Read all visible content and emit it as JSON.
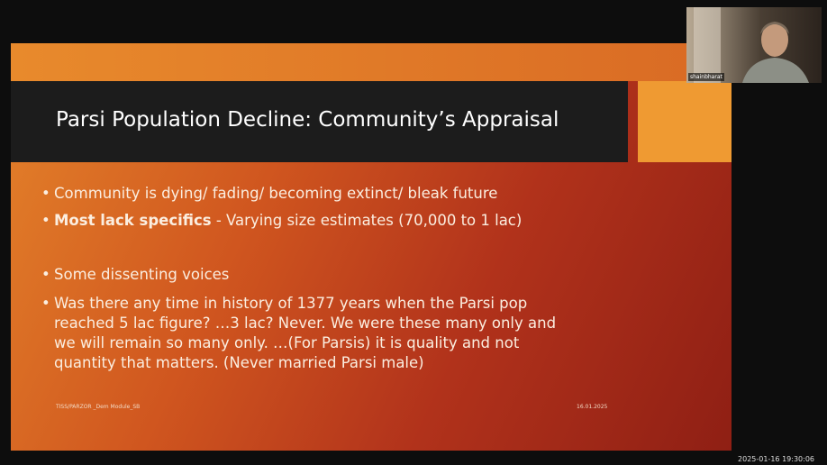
{
  "slide": {
    "title": "Parsi Population Decline: Community’s Appraisal",
    "bullets": [
      {
        "lines": [
          "Community is dying/ fading/ becoming extinct/ bleak future"
        ]
      },
      {
        "bold": "Most lack specifics",
        "lines": [
          " - Varying size estimates (70,000 to 1 lac)"
        ]
      },
      {
        "lines": [
          "Some dissenting voices"
        ]
      },
      {
        "lines": [
          "Was there any time in history of 1377 years when the Parsi pop",
          "reached 5 lac figure? …3 lac? Never. We were these many only and",
          "we will remain so many only. …(For Parsis) it is quality and not",
          "quantity that matters. (Never married Parsi male)"
        ]
      }
    ],
    "footer_left": "TISS/PARZOR _Dem Module_SB",
    "footer_date": "16.01.2025"
  },
  "video": {
    "participant": "shainbharat"
  },
  "timestamp": "2025-01-16  19:30:06"
}
